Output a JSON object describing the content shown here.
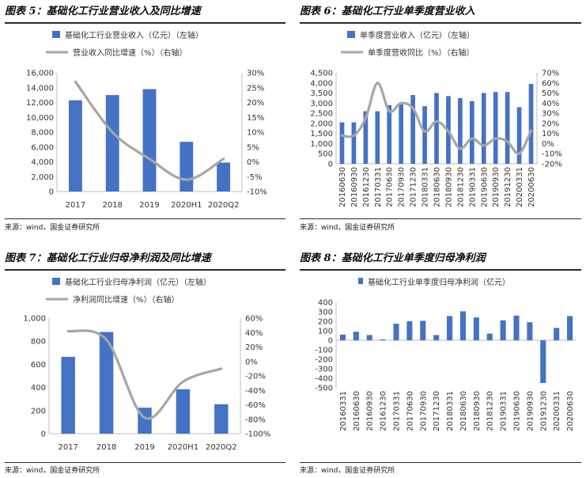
{
  "panels": [
    {
      "title": "图表 5：基础化工行业营业收入及同比增速",
      "source": "来源：wind，国金证券研究所",
      "chart_data": {
        "type": "bar",
        "categories": [
          "2017",
          "2018",
          "2019",
          "2020H1",
          "2020Q2"
        ],
        "series": [
          {
            "name": "基础化工行业营业收入（亿元）（左轴）",
            "kind": "bar",
            "axis": "left",
            "values": [
              12300,
              13000,
              13800,
              6700,
              3900
            ]
          },
          {
            "name": "营业收入同比增速（%）（右轴）",
            "kind": "line",
            "axis": "right",
            "values": [
              27,
              10,
              1,
              -6,
              1
            ]
          }
        ],
        "ylim": [
          0,
          16000
        ],
        "yticks": [
          0,
          2000,
          4000,
          6000,
          8000,
          10000,
          12000,
          14000,
          16000
        ],
        "ytick_labels": [
          "0",
          "2,000",
          "4,000",
          "6,000",
          "8,000",
          "10,000",
          "12,000",
          "14,000",
          "16,000"
        ],
        "y2lim": [
          -10,
          30
        ],
        "y2ticks": [
          -10,
          -5,
          0,
          5,
          10,
          15,
          20,
          25,
          30
        ],
        "y2tick_labels": [
          "-10%",
          "-5%",
          "0%",
          "5%",
          "10%",
          "15%",
          "20%",
          "25%",
          "30%"
        ],
        "xlabel_rotated": false,
        "colors": {
          "bar": "#4472c4",
          "line": "#a6a6a6"
        }
      }
    },
    {
      "title": "图表 6：基础化工行业单季度营业收入",
      "source": "来源：wind，国金证券研究所",
      "chart_data": {
        "type": "bar",
        "categories": [
          "20160630",
          "20160930",
          "20161230",
          "20170331",
          "20170630",
          "20170930",
          "20171230",
          "20180331",
          "20180630",
          "20180930",
          "20181230",
          "20190331",
          "20190630",
          "20190930",
          "20191230",
          "20200331",
          "20200630"
        ],
        "series": [
          {
            "name": "单季度营业收入（亿元）（左轴）",
            "kind": "bar",
            "axis": "left",
            "values": [
              2050,
              2050,
              2600,
              2600,
              2900,
              2950,
              3400,
              2850,
              3500,
              3350,
              3250,
              3100,
              3500,
              3550,
              3550,
              2800,
              3950
            ]
          },
          {
            "name": "单季度营收同比（%）（右轴）",
            "kind": "line",
            "axis": "right",
            "values": [
              8,
              8,
              25,
              60,
              32,
              40,
              35,
              12,
              22,
              12,
              -5,
              5,
              -2,
              5,
              2,
              -10,
              13
            ]
          }
        ],
        "ylim": [
          0,
          4500
        ],
        "yticks": [
          0,
          500,
          1000,
          1500,
          2000,
          2500,
          3000,
          3500,
          4000,
          4500
        ],
        "ytick_labels": [
          "0",
          "500",
          "1,000",
          "1,500",
          "2,000",
          "2,500",
          "3,000",
          "3,500",
          "4,000",
          "4,500"
        ],
        "y2lim": [
          -20,
          70
        ],
        "y2ticks": [
          -20,
          -10,
          0,
          10,
          20,
          30,
          40,
          50,
          60,
          70
        ],
        "y2tick_labels": [
          "-20%",
          "-10%",
          "0%",
          "10%",
          "20%",
          "30%",
          "40%",
          "50%",
          "60%",
          "70%"
        ],
        "xlabel_rotated": true,
        "colors": {
          "bar": "#4472c4",
          "line": "#a6a6a6"
        }
      }
    },
    {
      "title": "图表 7：基础化工行业归母净利润及同比增速",
      "source": "来源：wind，国金证券研究所",
      "chart_data": {
        "type": "bar",
        "categories": [
          "2017",
          "2018",
          "2019",
          "2020H1",
          "2020Q2"
        ],
        "series": [
          {
            "name": "基础化工行业归母净利润（亿元）（左轴）",
            "kind": "bar",
            "axis": "left",
            "values": [
              665,
              880,
              225,
              385,
              255
            ]
          },
          {
            "name": "净利润同比增速（%）（右轴）",
            "kind": "line",
            "axis": "right",
            "values": [
              42,
              30,
              -78,
              -28,
              -10
            ]
          }
        ],
        "ylim": [
          0,
          1000
        ],
        "yticks": [
          0,
          200,
          400,
          600,
          800,
          1000
        ],
        "ytick_labels": [
          "0",
          "200",
          "400",
          "600",
          "800",
          "1,000"
        ],
        "y2lim": [
          -100,
          60
        ],
        "y2ticks": [
          -100,
          -80,
          -60,
          -40,
          -20,
          0,
          20,
          40,
          60
        ],
        "y2tick_labels": [
          "-100%",
          "-80%",
          "-60%",
          "-40%",
          "-20%",
          "0%",
          "20%",
          "40%",
          "60%"
        ],
        "xlabel_rotated": false,
        "colors": {
          "bar": "#4472c4",
          "line": "#a6a6a6"
        }
      }
    },
    {
      "title": "图表 8：基础化工行业单季度归母净利润",
      "source": "来源：wind，国金证券研究所",
      "chart_data": {
        "type": "bar",
        "categories": [
          "20160331",
          "20160630",
          "20160930",
          "20161230",
          "20170331",
          "20170630",
          "20170930",
          "20171230",
          "20180331",
          "20180630",
          "20180930",
          "20181230",
          "20190331",
          "20190630",
          "20190930",
          "20191230",
          "20200331",
          "20200630"
        ],
        "series": [
          {
            "name": "基础化工行业单季度归母净利润（亿元）",
            "kind": "bar",
            "axis": "left",
            "values": [
              60,
              90,
              55,
              10,
              175,
              200,
              205,
              55,
              255,
              305,
              240,
              70,
              210,
              260,
              190,
              -450,
              130,
              255
            ]
          }
        ],
        "ylim": [
          -500,
          400
        ],
        "yticks": [
          -500,
          -400,
          -300,
          -200,
          -100,
          0,
          100,
          200,
          300,
          400
        ],
        "ytick_labels": [
          "-500",
          "-400",
          "-300",
          "-200",
          "-100",
          "0",
          "100",
          "200",
          "300",
          "400"
        ],
        "xlabel_rotated": true,
        "colors": {
          "bar": "#4472c4"
        }
      }
    }
  ]
}
